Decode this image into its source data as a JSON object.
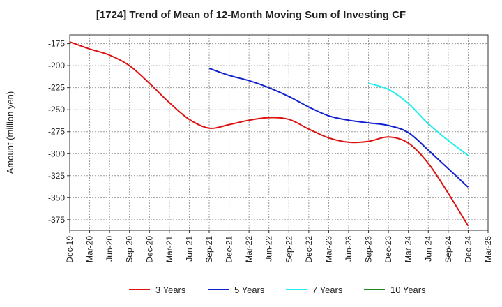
{
  "chart_data": {
    "type": "line",
    "title": "[1724]  Trend of Mean of 12-Month Moving Sum of Investing CF",
    "xlabel": "",
    "ylabel": "Amount (million yen)",
    "ylim": [
      -387,
      -165
    ],
    "yticks": [
      -175,
      -200,
      -225,
      -250,
      -275,
      -300,
      -325,
      -350,
      -375
    ],
    "x_tick_labels": [
      "Dec-19",
      "Mar-20",
      "Jun-20",
      "Sep-20",
      "Dec-20",
      "Mar-21",
      "Jun-21",
      "Sep-21",
      "Dec-21",
      "Mar-22",
      "Jun-22",
      "Sep-22",
      "Dec-22",
      "Mar-23",
      "Jun-23",
      "Sep-23",
      "Dec-23",
      "Mar-24",
      "Jun-24",
      "Sep-24",
      "Dec-24",
      "Mar-25"
    ],
    "grid": true,
    "legend_position": "bottom",
    "series": [
      {
        "name": "3 Years",
        "color": "#dd1111",
        "points": [
          {
            "x": 0,
            "y": -173
          },
          {
            "x": 1,
            "y": -181
          },
          {
            "x": 2,
            "y": -188
          },
          {
            "x": 3,
            "y": -200
          },
          {
            "x": 4,
            "y": -220
          },
          {
            "x": 5,
            "y": -242
          },
          {
            "x": 6,
            "y": -261
          },
          {
            "x": 7,
            "y": -271
          },
          {
            "x": 8,
            "y": -267
          },
          {
            "x": 9,
            "y": -262
          },
          {
            "x": 10,
            "y": -259
          },
          {
            "x": 11,
            "y": -261
          },
          {
            "x": 12,
            "y": -272
          },
          {
            "x": 13,
            "y": -282
          },
          {
            "x": 14,
            "y": -287
          },
          {
            "x": 15,
            "y": -286
          },
          {
            "x": 16,
            "y": -281
          },
          {
            "x": 17,
            "y": -288
          },
          {
            "x": 18,
            "y": -311
          },
          {
            "x": 19,
            "y": -345
          },
          {
            "x": 20,
            "y": -382
          }
        ]
      },
      {
        "name": "5 Years",
        "color": "#1122cc",
        "points": [
          {
            "x": 7,
            "y": -203
          },
          {
            "x": 8,
            "y": -211
          },
          {
            "x": 9,
            "y": -217
          },
          {
            "x": 10,
            "y": -225
          },
          {
            "x": 11,
            "y": -235
          },
          {
            "x": 12,
            "y": -247
          },
          {
            "x": 13,
            "y": -257
          },
          {
            "x": 14,
            "y": -262
          },
          {
            "x": 15,
            "y": -265
          },
          {
            "x": 16,
            "y": -268
          },
          {
            "x": 17,
            "y": -276
          },
          {
            "x": 18,
            "y": -296
          },
          {
            "x": 19,
            "y": -317
          },
          {
            "x": 20,
            "y": -338
          }
        ]
      },
      {
        "name": "7 Years",
        "color": "#22eeee",
        "points": [
          {
            "x": 15,
            "y": -220
          },
          {
            "x": 16,
            "y": -227
          },
          {
            "x": 17,
            "y": -243
          },
          {
            "x": 18,
            "y": -266
          },
          {
            "x": 19,
            "y": -285
          },
          {
            "x": 20,
            "y": -302
          }
        ]
      },
      {
        "name": "10 Years",
        "color": "#228822",
        "points": []
      }
    ]
  }
}
